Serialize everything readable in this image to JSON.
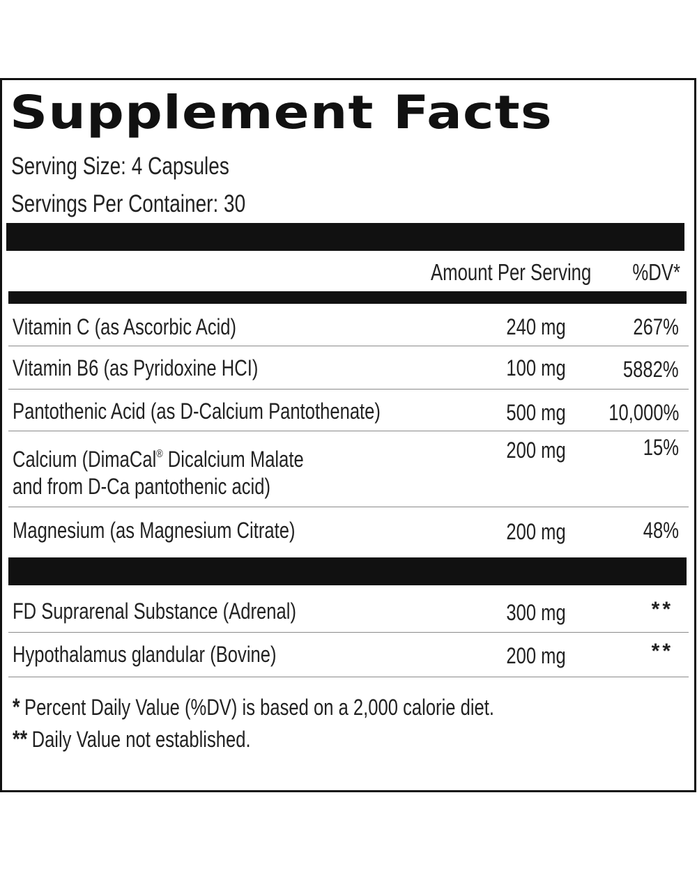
{
  "title": "Supplement Facts",
  "serving_size": "Serving Size: 4 Capsules",
  "servings_per_container": "Servings Per Container: 30",
  "columns": {
    "amount": "Amount Per Serving",
    "dv": "%DV*"
  },
  "nutrients": [
    {
      "name": "Vitamin C (as Ascorbic Acid)",
      "amount": "240 mg",
      "dv": "267%"
    },
    {
      "name": "Vitamin B6 (as Pyridoxine HCI)",
      "amount": "100 mg",
      "dv": "5882%"
    },
    {
      "name": "Pantothenic Acid (as D-Calcium Pantothenate)",
      "amount": "500 mg",
      "dv": "10,000%"
    },
    {
      "name_line1_a": "Calcium (DimaCal",
      "name_line1_reg": "®",
      "name_line1_b": " Dicalcium Malate",
      "name_line2": "and from D-Ca pantothenic acid)",
      "amount": "200 mg",
      "dv": "15%"
    },
    {
      "name": "Magnesium (as Magnesium Citrate)",
      "amount": "200 mg",
      "dv": "48%"
    }
  ],
  "other_ingredients": [
    {
      "name": "FD Suprarenal Substance (Adrenal)",
      "amount": "300 mg",
      "dv": "**"
    },
    {
      "name": "Hypothalamus glandular (Bovine)",
      "amount": "200 mg",
      "dv": "**"
    }
  ],
  "footnotes": [
    {
      "mark": "*",
      "text": "Percent Daily Value (%DV) is based on a 2,000 calorie diet."
    },
    {
      "mark": "**",
      "text": "Daily Value not established."
    }
  ]
}
